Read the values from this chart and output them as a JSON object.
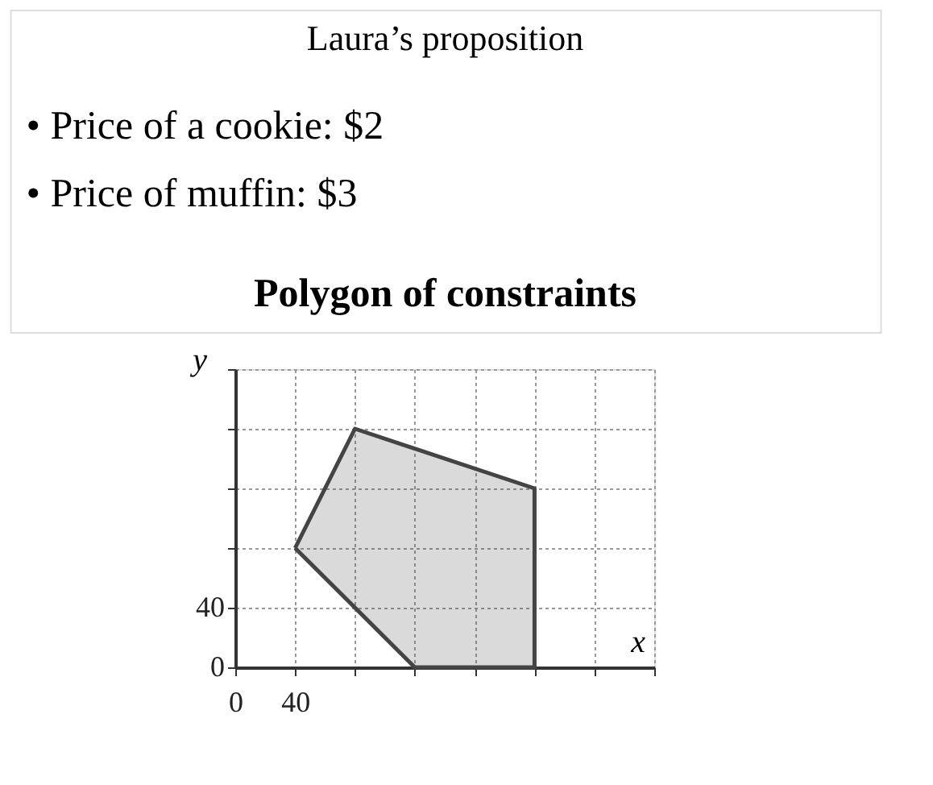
{
  "chart_data": {
    "type": "area",
    "title": "Laura’s proposition",
    "subtitle": "Polygon of constraints",
    "annotations": [
      "• Price of a cookie: $2",
      "• Price of muffin: $3"
    ],
    "xlabel": "x",
    "ylabel": "y",
    "series": [
      {
        "color": "#444444",
        "x": [
          40,
          80,
          200,
          200,
          120,
          40
        ],
        "values": [
          80,
          160,
          120,
          0,
          0,
          80
        ]
      }
    ],
    "xlim": [
      0,
      280
    ],
    "ylim": [
      0,
      200
    ],
    "xticks": [
      0,
      40,
      {
        "value": 80,
        "label": null
      },
      {
        "value": 120,
        "label": null
      },
      {
        "value": 160,
        "label": null
      },
      {
        "value": 200,
        "label": null
      },
      {
        "value": 240,
        "label": null
      },
      {
        "value": 280,
        "label": null
      }
    ],
    "yticks": [
      0,
      40,
      {
        "value": 80,
        "label": null
      },
      {
        "value": 120,
        "label": null
      },
      {
        "value": 160,
        "label": null
      },
      {
        "value": 200,
        "label": null
      }
    ],
    "grid": true,
    "marker": "none",
    "line_style": "solid"
  }
}
